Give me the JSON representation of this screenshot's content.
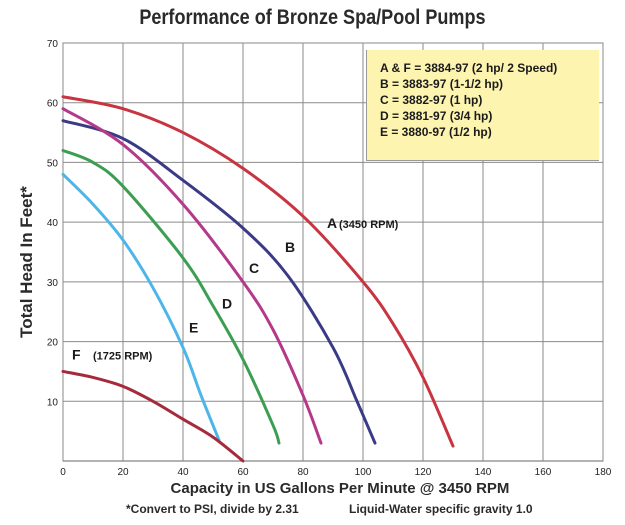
{
  "chart_data": {
    "type": "line",
    "title": "Performance of Bronze Spa/Pool Pumps",
    "xlabel": "Capacity in US Gallons Per Minute @ 3450 RPM",
    "ylabel": "Total Head In Feet*",
    "xlim": [
      0,
      180
    ],
    "ylim": [
      0,
      70
    ],
    "xticks": [
      "0",
      "20",
      "40",
      "60",
      "80",
      "100",
      "120",
      "140",
      "160",
      "180"
    ],
    "yticks": [
      "10",
      "20",
      "30",
      "40",
      "50",
      "60",
      "70"
    ],
    "grid": true,
    "series": [
      {
        "name": "A",
        "label": "A",
        "sublabel": "(3450 RPM)",
        "color": "#c8343f",
        "x": [
          0,
          20,
          40,
          60,
          80,
          100,
          110,
          120,
          130
        ],
        "y": [
          61,
          59,
          55,
          49,
          41,
          30,
          23,
          14,
          2.5
        ]
      },
      {
        "name": "B",
        "label": "B",
        "sublabel": "",
        "color": "#3a3a86",
        "x": [
          0,
          20,
          40,
          60,
          75,
          90,
          98,
          104
        ],
        "y": [
          57,
          54,
          47,
          39,
          31,
          19,
          10,
          3
        ]
      },
      {
        "name": "C",
        "label": "C",
        "sublabel": "",
        "color": "#b5398a",
        "x": [
          0,
          20,
          40,
          60,
          70,
          80,
          86
        ],
        "y": [
          59,
          53,
          43,
          30,
          22,
          11,
          3
        ]
      },
      {
        "name": "D",
        "label": "D",
        "sublabel": "",
        "color": "#3c9e52",
        "x": [
          0,
          10,
          20,
          40,
          50,
          60,
          70,
          72
        ],
        "y": [
          52,
          50,
          46,
          34,
          26,
          17,
          6,
          3
        ]
      },
      {
        "name": "E",
        "label": "E",
        "sublabel": "",
        "color": "#4db6e8",
        "x": [
          0,
          10,
          20,
          30,
          40,
          46,
          52
        ],
        "y": [
          48,
          43,
          37,
          29,
          19,
          11,
          3.5
        ]
      },
      {
        "name": "F",
        "label": "F",
        "sublabel": "(1725 RPM)",
        "color": "#a52b3c",
        "x": [
          0,
          10,
          20,
          30,
          40,
          50,
          60
        ],
        "y": [
          15,
          14,
          12.5,
          10,
          7,
          4,
          0
        ]
      }
    ],
    "labels": [
      {
        "series": "A",
        "text": "A",
        "x": 88,
        "y": 39
      },
      {
        "series": "A",
        "text": "(3450 RPM)",
        "x": 92,
        "y": 39
      },
      {
        "series": "B",
        "text": "B",
        "x": 74,
        "y": 35
      },
      {
        "series": "C",
        "text": "C",
        "x": 62,
        "y": 31.5
      },
      {
        "series": "D",
        "text": "D",
        "x": 53,
        "y": 25.5
      },
      {
        "series": "E",
        "text": "E",
        "x": 42,
        "y": 21.5
      },
      {
        "series": "F",
        "text": "F",
        "x": 3,
        "y": 17
      },
      {
        "series": "F",
        "text": "(1725 RPM)",
        "x": 10,
        "y": 17
      }
    ],
    "legend": [
      "A & F = 3884-97 (2 hp/ 2 Speed)",
      "B = 3883-97 (1-1/2 hp)",
      "C = 3882-97 (1 hp)",
      "D = 3881-97 (3/4 hp)",
      "E = 3880-97 (1/2 hp)"
    ],
    "legend_placement": "top-right"
  },
  "footnote": "*Convert to PSI, divide by 2.31",
  "gravity_note": "Liquid-Water specific gravity 1.0"
}
